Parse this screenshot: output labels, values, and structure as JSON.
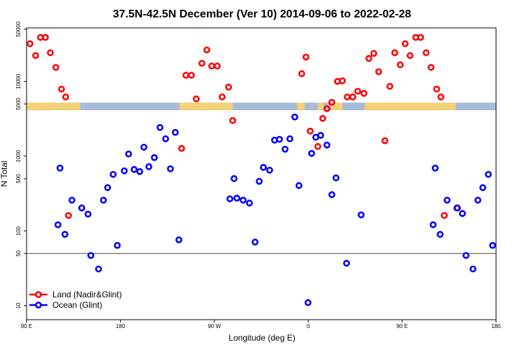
{
  "chart_data": {
    "type": "scatter",
    "title": "37.5N-42.5N December (Ver 10)   2014-09-06 to 2022-02-28",
    "x_label": "Longitude (deg E)",
    "y_label": "N Total",
    "log_y": true,
    "legend": "bottom-left",
    "xlim": [
      90,
      540
    ],
    "ylim": [
      6.5,
      52000
    ],
    "xticks": [
      {
        "value": 90,
        "label": "90 E"
      },
      180,
      {
        "value": 270,
        "label": "90 W"
      },
      {
        "value": 360,
        "label": "0"
      },
      {
        "value": 450,
        "label": "90 E"
      },
      {
        "value": 540,
        "label": "180"
      }
    ],
    "yticks": [
      10,
      50,
      100,
      500,
      1000,
      5000,
      10000,
      50000
    ],
    "hlines": [
      50
    ],
    "series": [
      {
        "name": "Land (Nadir&Glint)",
        "color": "#ff0000",
        "x": [
          93.3,
          98.7,
          103.4,
          108.1,
          112.8,
          118.1,
          123.5,
          127.5,
          130.2,
          142.9,
          238.6,
          242.7,
          248.0,
          252.7,
          258.1,
          262.8,
          267.5,
          272.8,
          277.5,
          283.6,
          287.6,
          353.8,
          357.8,
          361.9,
          369.2,
          373.9,
          377.9,
          382.6,
          388.0,
          392.7,
          397.4,
          402.7,
          407.4,
          413.4,
          418.1,
          422.8,
          427.5,
          433.5,
          438.2,
          442.9,
          448.2,
          452.9,
          457.6,
          463.0,
          467.7,
          473.0,
          477.7,
          483.1,
          487.1,
          490.4,
          503.1
        ],
        "values": [
          32000,
          22200,
          38800,
          38800,
          24200,
          15400,
          7900,
          6200,
          161,
          203,
          1270,
          12100,
          12100,
          5840,
          17500,
          26400,
          16100,
          16100,
          6200,
          8400,
          3000,
          12700,
          21200,
          2170,
          1350,
          3200,
          4320,
          5250,
          10000,
          10200,
          6200,
          6200,
          7400,
          6930,
          20300,
          23700,
          13500,
          1610,
          8600,
          24200,
          16700,
          32000,
          22200,
          38800,
          38800,
          24200,
          15400,
          7900,
          6200,
          161,
          203
        ]
      },
      {
        "name": "Ocean (Glint)",
        "color": "#0000ff",
        "x": [
          120.1,
          122.1,
          126.8,
          133.5,
          142.9,
          148.9,
          151.6,
          159.0,
          163.7,
          167.7,
          173.0,
          177.0,
          183.7,
          187.8,
          193.1,
          198.5,
          202.5,
          207.2,
          212.5,
          217.9,
          223.3,
          227.9,
          232.6,
          236.0,
          284.9,
          288.9,
          291.6,
          297.6,
          303.6,
          309.0,
          313.0,
          317.0,
          323.0,
          327.7,
          332.4,
          337.8,
          342.4,
          347.1,
          351.1,
          359.8,
          363.2,
          367.2,
          371.9,
          377.9,
          382.6,
          386.6,
          396.7,
          410.7,
          479.7,
          481.7,
          486.4,
          493.1,
          502.5,
          507.8,
          511.2,
          517.9,
          522.6,
          527.3,
          532.6,
          536.7
        ],
        "values": [
          121,
          694,
          90,
          258,
          203,
          168,
          47,
          31,
          258,
          380,
          571,
          64,
          637,
          1070,
          664,
          623,
          1320,
          724,
          958,
          2420,
          1710,
          679,
          2080,
          76,
          269,
          502,
          275,
          258,
          236,
          71,
          461,
          708,
          650,
          1640,
          1680,
          1240,
          1710,
          3340,
          405,
          11,
          1090,
          1790,
          1900,
          1410,
          306,
          513,
          37,
          164,
          121,
          694,
          90,
          258,
          203,
          171,
          47,
          31,
          258,
          380,
          571,
          64
        ]
      }
    ]
  }
}
